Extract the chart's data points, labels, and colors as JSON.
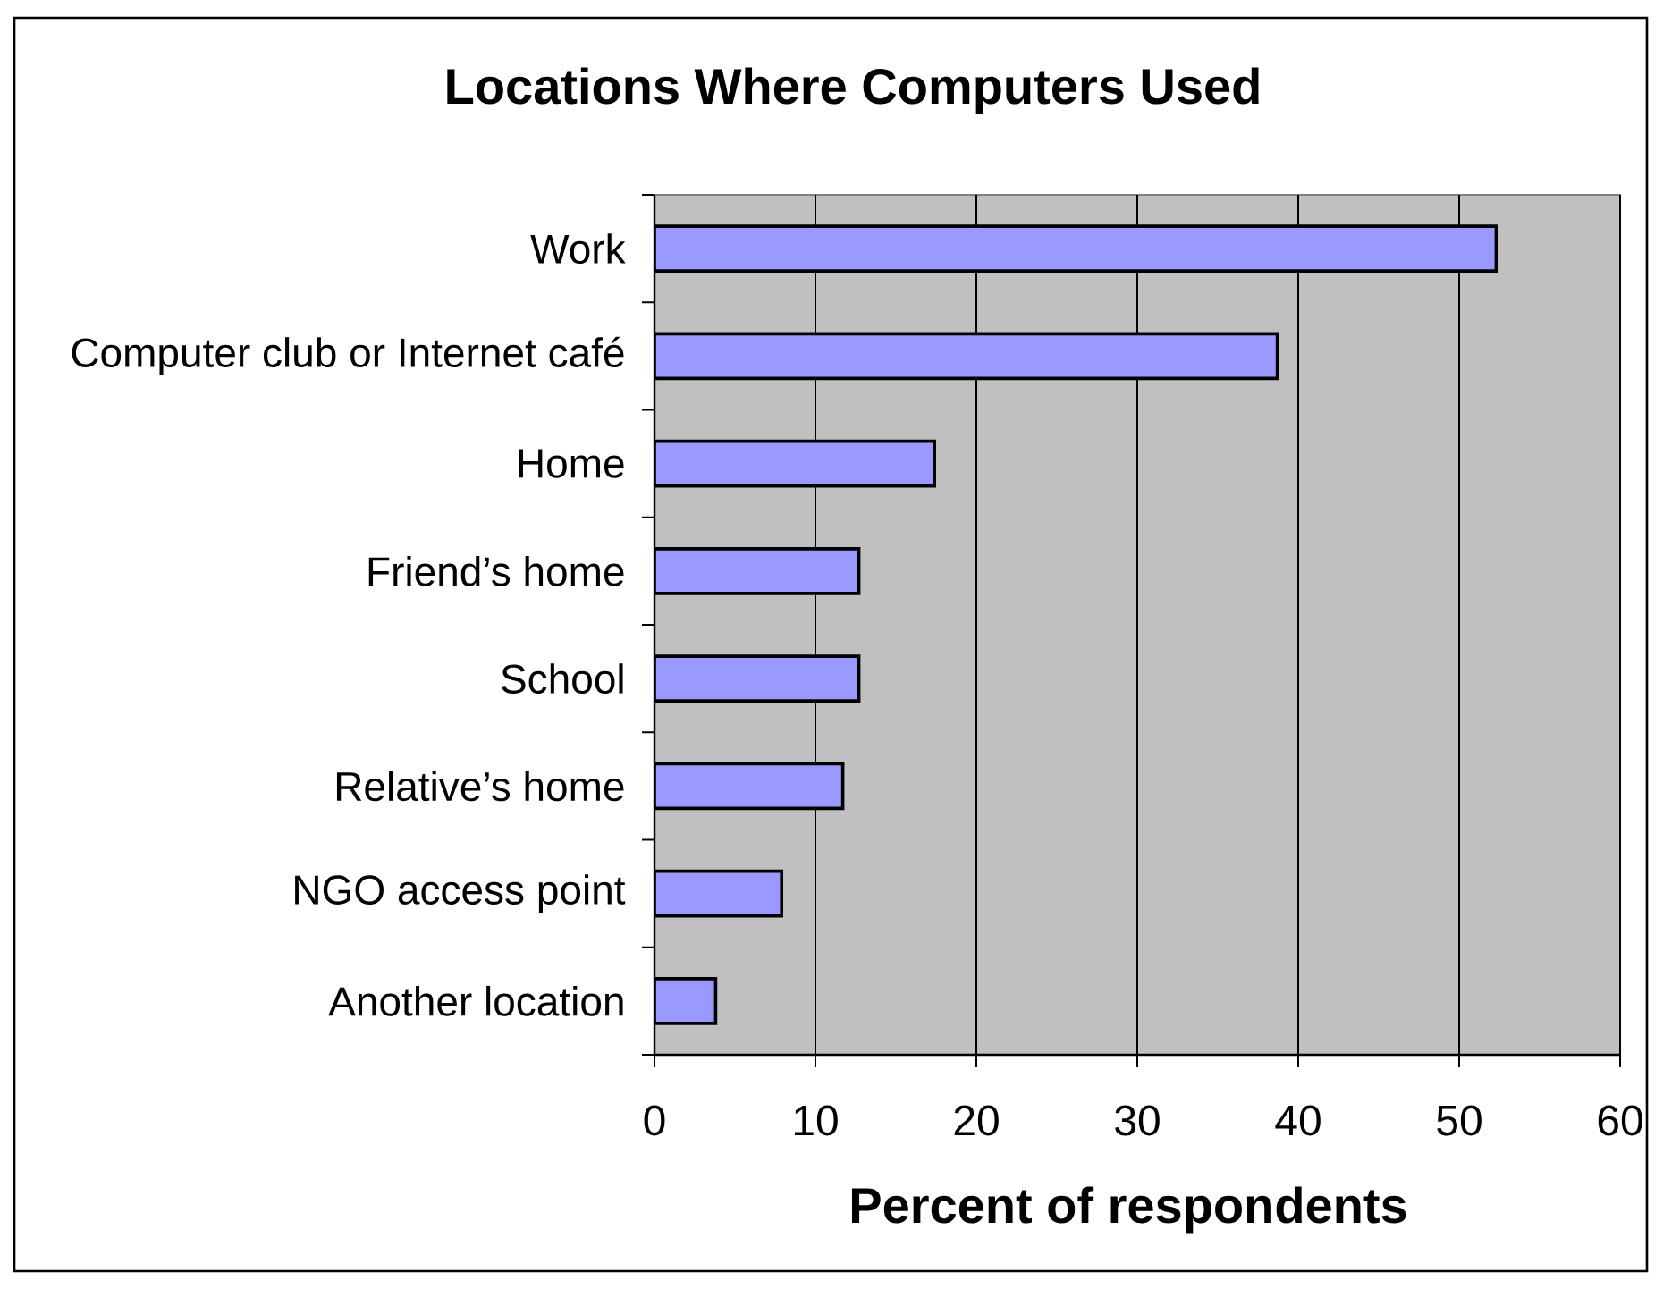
{
  "chart_data": {
    "type": "bar",
    "orientation": "horizontal",
    "title": "Locations Where Computers Used",
    "xlabel": "Percent of respondents",
    "categories": [
      "Work",
      "Computer club or Internet café",
      "Home",
      "Friend’s home",
      "School",
      "Relative’s home",
      "NGO access point",
      "Another location"
    ],
    "values": [
      52.3,
      38.7,
      17.4,
      12.7,
      12.7,
      11.7,
      7.9,
      3.8
    ],
    "color": "#9999ff",
    "xlim": [
      0,
      60
    ],
    "xticks": [
      0,
      10,
      20,
      30,
      40,
      50,
      60
    ],
    "grid": "x"
  }
}
